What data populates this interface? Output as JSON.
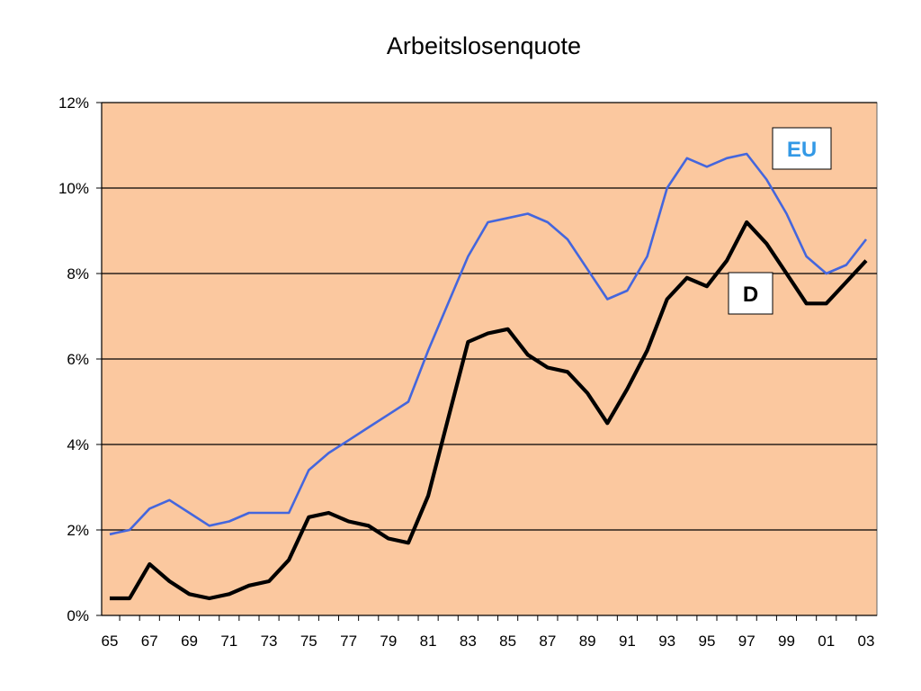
{
  "chart_data": {
    "type": "line",
    "title": "Arbeitslosenquote",
    "xlabel": "",
    "ylabel": "",
    "x_tick_labels": [
      "65",
      "67",
      "69",
      "71",
      "73",
      "75",
      "77",
      "79",
      "81",
      "83",
      "85",
      "87",
      "89",
      "91",
      "93",
      "95",
      "97",
      "99",
      "01",
      "03"
    ],
    "y_tick_labels": [
      "0%",
      "2%",
      "4%",
      "6%",
      "8%",
      "10%",
      "12%"
    ],
    "ylim": [
      0,
      12
    ],
    "grid": true,
    "x": [
      1965,
      1966,
      1967,
      1968,
      1969,
      1970,
      1971,
      1972,
      1973,
      1974,
      1975,
      1976,
      1977,
      1978,
      1979,
      1980,
      1981,
      1982,
      1983,
      1984,
      1985,
      1986,
      1987,
      1988,
      1989,
      1990,
      1991,
      1992,
      1993,
      1994,
      1995,
      1996,
      1997,
      1998,
      1999,
      2000,
      2001,
      2002,
      2003
    ],
    "series": [
      {
        "name": "EU",
        "color": "#4466dd",
        "values": [
          1.9,
          2.0,
          2.5,
          2.7,
          2.4,
          2.1,
          2.2,
          2.4,
          2.4,
          2.4,
          3.4,
          3.8,
          4.1,
          4.4,
          4.7,
          5.0,
          6.2,
          7.3,
          8.4,
          9.2,
          9.3,
          9.4,
          9.2,
          8.8,
          8.1,
          7.4,
          7.6,
          8.4,
          10.0,
          10.7,
          10.5,
          10.7,
          10.8,
          10.2,
          9.4,
          8.4,
          8.0,
          8.2,
          8.8
        ]
      },
      {
        "name": "D",
        "color": "#000000",
        "values": [
          0.4,
          0.4,
          1.2,
          0.8,
          0.5,
          0.4,
          0.5,
          0.7,
          0.8,
          1.3,
          2.3,
          2.4,
          2.2,
          2.1,
          1.8,
          1.7,
          2.8,
          4.6,
          6.4,
          6.6,
          6.7,
          6.1,
          5.8,
          5.7,
          5.2,
          4.5,
          5.3,
          6.2,
          7.4,
          7.9,
          7.7,
          8.3,
          9.2,
          8.7,
          8.0,
          7.3,
          7.3,
          7.8,
          8.3
        ]
      }
    ],
    "legend": [
      {
        "label": "EU",
        "color": "#3399e6"
      },
      {
        "label": "D",
        "color": "#000000"
      }
    ],
    "plot_background": "#fbc89f"
  }
}
